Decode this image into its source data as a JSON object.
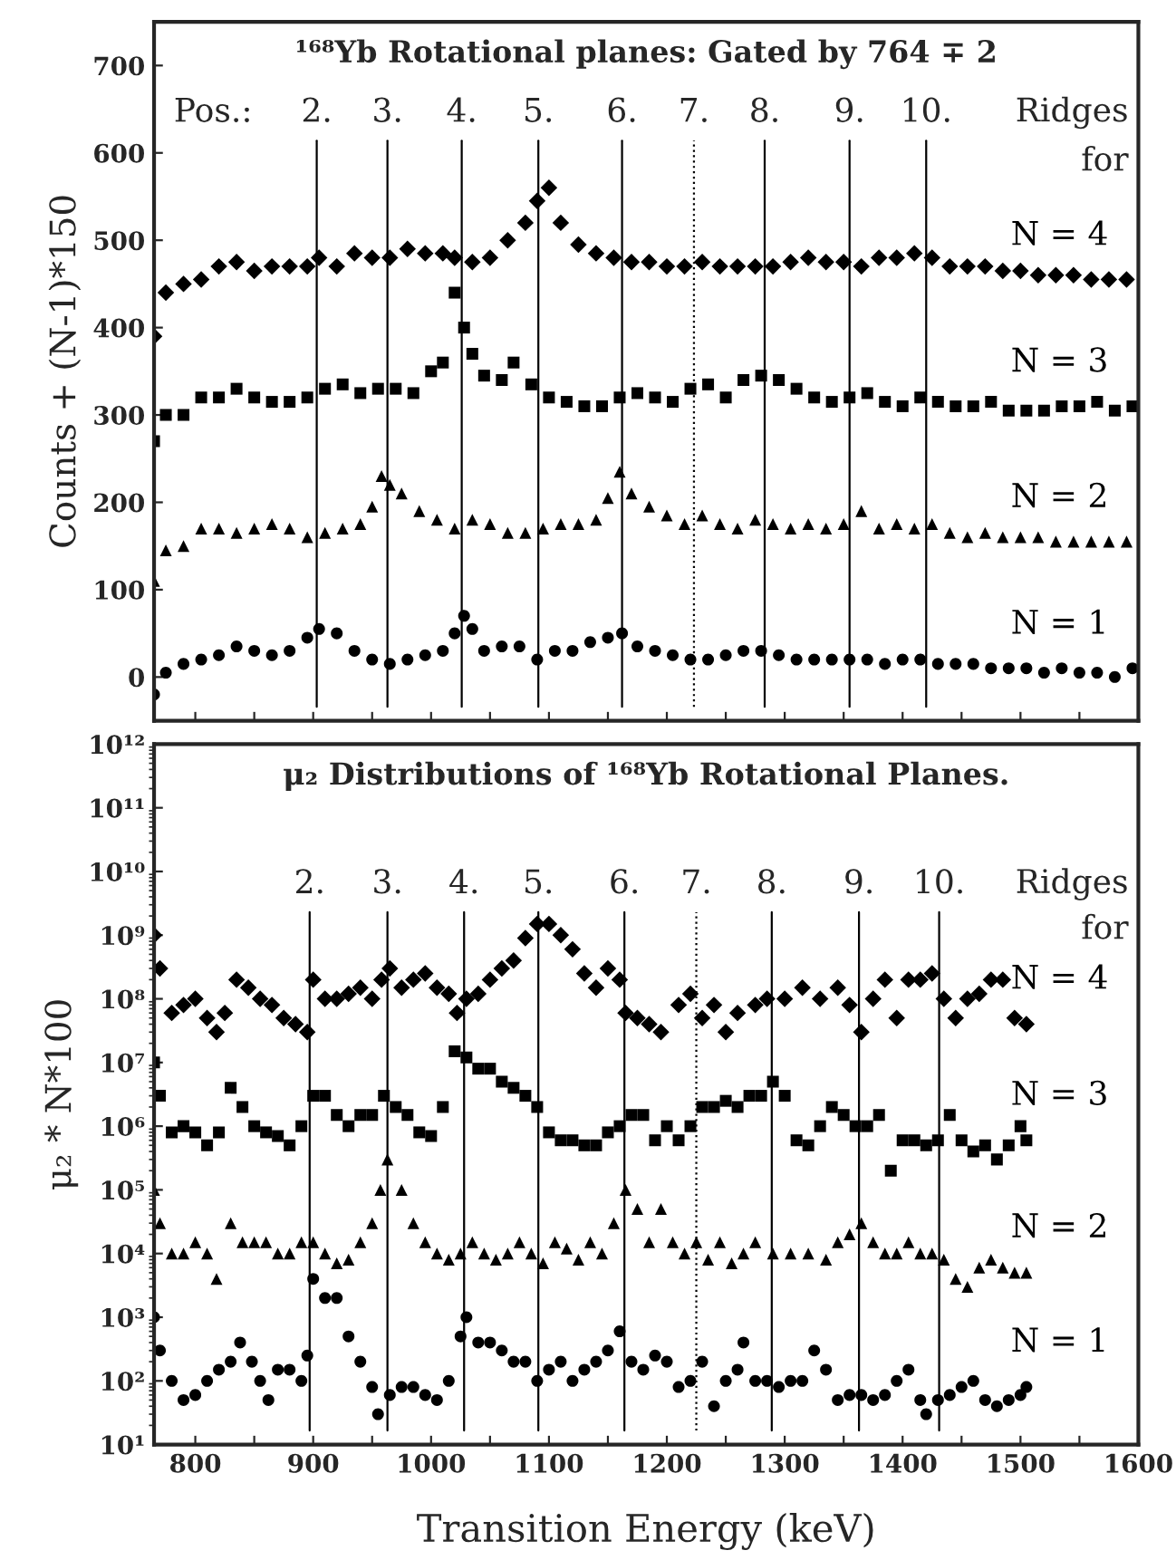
{
  "chart_data": [
    {
      "type": "scatter",
      "title": "¹⁶⁸Yb Rotational planes: Gated by 764 ∓ 2",
      "ylabel": "Counts + (N-1)*150",
      "xlim": [
        765,
        1600
      ],
      "xticks": [
        800,
        850,
        900,
        950,
        1000,
        1050,
        1100,
        1150,
        1200,
        1250,
        1300,
        1350,
        1400,
        1450,
        1500,
        1550,
        1600
      ],
      "ylim": [
        -50,
        750
      ],
      "yticks": [
        0,
        100,
        200,
        300,
        400,
        500,
        600,
        700
      ],
      "tick_labels": "y",
      "legend": false,
      "grid": false,
      "annotations": [
        "Pos.:",
        "Ridges",
        "for",
        "2.",
        "3.",
        "4.",
        "5.",
        "6.",
        "7.",
        "8.",
        "9.",
        "10."
      ],
      "ref_lines": [
        {
          "axis": "x",
          "value": 903
        },
        {
          "axis": "x",
          "value": 963
        },
        {
          "axis": "x",
          "value": 1026
        },
        {
          "axis": "x",
          "value": 1091
        },
        {
          "axis": "x",
          "value": 1162
        },
        {
          "axis": "x",
          "value": 1223,
          "line_style": "dotted"
        },
        {
          "axis": "x",
          "value": 1283
        },
        {
          "axis": "x",
          "value": 1355
        },
        {
          "axis": "x",
          "value": 1420
        }
      ],
      "series": [
        {
          "name": "N = 4",
          "color": "#000000",
          "marker": "diamond",
          "x": [
            765,
            775,
            790,
            805,
            820,
            835,
            850,
            865,
            880,
            895,
            905,
            920,
            935,
            950,
            965,
            980,
            995,
            1010,
            1020,
            1035,
            1050,
            1065,
            1080,
            1090,
            1100,
            1110,
            1125,
            1140,
            1155,
            1170,
            1185,
            1200,
            1215,
            1230,
            1245,
            1260,
            1275,
            1290,
            1305,
            1320,
            1335,
            1350,
            1365,
            1380,
            1395,
            1410,
            1425,
            1440,
            1455,
            1470,
            1485,
            1500,
            1515,
            1530,
            1545,
            1560,
            1575,
            1590
          ],
          "values": [
            390,
            440,
            450,
            455,
            470,
            475,
            465,
            470,
            470,
            470,
            480,
            470,
            485,
            480,
            480,
            490,
            485,
            485,
            480,
            475,
            480,
            500,
            520,
            545,
            560,
            520,
            495,
            485,
            480,
            475,
            475,
            470,
            470,
            475,
            470,
            470,
            470,
            470,
            475,
            480,
            475,
            475,
            470,
            480,
            480,
            485,
            480,
            470,
            470,
            470,
            465,
            465,
            460,
            460,
            460,
            455,
            455,
            455
          ]
        },
        {
          "name": "N = 3",
          "color": "#000000",
          "marker": "square",
          "x": [
            765,
            775,
            790,
            805,
            820,
            835,
            850,
            865,
            880,
            895,
            910,
            925,
            940,
            955,
            970,
            985,
            1000,
            1010,
            1020,
            1028,
            1035,
            1045,
            1060,
            1070,
            1085,
            1100,
            1115,
            1130,
            1145,
            1160,
            1175,
            1190,
            1205,
            1220,
            1235,
            1250,
            1265,
            1280,
            1295,
            1310,
            1325,
            1340,
            1355,
            1370,
            1385,
            1400,
            1415,
            1430,
            1445,
            1460,
            1475,
            1490,
            1505,
            1520,
            1535,
            1550,
            1565,
            1580,
            1595
          ],
          "values": [
            270,
            300,
            300,
            320,
            320,
            330,
            320,
            315,
            315,
            320,
            330,
            335,
            325,
            330,
            330,
            325,
            350,
            360,
            440,
            400,
            370,
            345,
            340,
            360,
            335,
            320,
            315,
            310,
            310,
            320,
            325,
            320,
            315,
            330,
            335,
            320,
            340,
            345,
            340,
            330,
            320,
            315,
            320,
            325,
            315,
            310,
            320,
            315,
            310,
            310,
            315,
            305,
            305,
            305,
            310,
            310,
            315,
            305,
            310
          ]
        },
        {
          "name": "N = 2",
          "color": "#000000",
          "marker": "triangle",
          "x": [
            765,
            775,
            790,
            805,
            820,
            835,
            850,
            865,
            880,
            895,
            910,
            925,
            940,
            950,
            958,
            965,
            975,
            990,
            1005,
            1020,
            1035,
            1050,
            1065,
            1080,
            1095,
            1110,
            1125,
            1140,
            1150,
            1160,
            1170,
            1185,
            1200,
            1215,
            1230,
            1245,
            1260,
            1275,
            1290,
            1305,
            1320,
            1335,
            1350,
            1365,
            1380,
            1395,
            1410,
            1425,
            1440,
            1455,
            1470,
            1485,
            1500,
            1515,
            1530,
            1545,
            1560,
            1575,
            1590
          ],
          "values": [
            110,
            145,
            150,
            170,
            170,
            165,
            170,
            175,
            170,
            160,
            165,
            170,
            175,
            195,
            230,
            220,
            210,
            190,
            180,
            170,
            180,
            175,
            165,
            165,
            170,
            175,
            175,
            180,
            205,
            235,
            210,
            195,
            185,
            175,
            185,
            175,
            170,
            180,
            175,
            170,
            175,
            170,
            175,
            190,
            170,
            175,
            170,
            175,
            165,
            160,
            165,
            160,
            160,
            160,
            155,
            155,
            155,
            155,
            155
          ]
        },
        {
          "name": "N = 1",
          "color": "#000000",
          "marker": "circle",
          "x": [
            765,
            775,
            790,
            805,
            820,
            835,
            850,
            865,
            880,
            895,
            905,
            920,
            935,
            950,
            965,
            980,
            995,
            1010,
            1020,
            1028,
            1035,
            1045,
            1060,
            1075,
            1090,
            1105,
            1120,
            1135,
            1150,
            1162,
            1175,
            1190,
            1205,
            1220,
            1235,
            1250,
            1265,
            1280,
            1295,
            1310,
            1325,
            1340,
            1355,
            1370,
            1385,
            1400,
            1415,
            1430,
            1445,
            1460,
            1475,
            1490,
            1505,
            1520,
            1535,
            1550,
            1565,
            1580,
            1595
          ],
          "values": [
            -20,
            5,
            15,
            20,
            25,
            35,
            30,
            25,
            30,
            45,
            55,
            50,
            30,
            20,
            15,
            20,
            25,
            30,
            50,
            70,
            55,
            30,
            35,
            35,
            20,
            30,
            30,
            40,
            45,
            50,
            35,
            30,
            25,
            20,
            20,
            25,
            30,
            30,
            25,
            20,
            20,
            20,
            20,
            20,
            15,
            20,
            20,
            15,
            15,
            15,
            10,
            10,
            10,
            5,
            10,
            5,
            5,
            0,
            10
          ]
        }
      ]
    },
    {
      "type": "scatter",
      "title": "μ₂ Distributions of ¹⁶⁸Yb Rotational Planes.",
      "xlabel": "Transition Energy (keV)",
      "ylabel": "μ₂ * N*100",
      "log": "y",
      "xlim": [
        765,
        1600
      ],
      "xticks": [
        800,
        {
          "value": 850,
          "label": null
        },
        900,
        {
          "value": 950,
          "label": null
        },
        1000,
        {
          "value": 1050,
          "label": null
        },
        1100,
        {
          "value": 1150,
          "label": null
        },
        1200,
        {
          "value": 1250,
          "label": null
        },
        1300,
        {
          "value": 1350,
          "label": null
        },
        1400,
        {
          "value": 1450,
          "label": null
        },
        1500,
        {
          "value": 1550,
          "label": null
        },
        1600
      ],
      "ylim": [
        10,
        1000000000000.0
      ],
      "yticks": [
        {
          "value": 10,
          "label": "10¹"
        },
        {
          "value": 100,
          "label": "10²"
        },
        {
          "value": 1000,
          "label": "10³"
        },
        {
          "value": 10000,
          "label": "10⁴"
        },
        {
          "value": 100000,
          "label": "10⁵"
        },
        {
          "value": 1000000,
          "label": "10⁶"
        },
        {
          "value": 10000000,
          "label": "10⁷"
        },
        {
          "value": 100000000,
          "label": "10⁸"
        },
        {
          "value": 1000000000,
          "label": "10⁹"
        },
        {
          "value": 10000000000,
          "label": "10¹⁰"
        },
        {
          "value": 100000000000,
          "label": "10¹¹"
        },
        {
          "value": 1000000000000,
          "label": "10¹²"
        }
      ],
      "legend": false,
      "grid": false,
      "annotations": [
        "Ridges",
        "for",
        "2.",
        "3.",
        "4.",
        "5.",
        "6.",
        "7.",
        "8.",
        "9.",
        "10."
      ],
      "ref_lines": [
        {
          "axis": "x",
          "value": 897
        },
        {
          "axis": "x",
          "value": 963
        },
        {
          "axis": "x",
          "value": 1028
        },
        {
          "axis": "x",
          "value": 1091
        },
        {
          "axis": "x",
          "value": 1164
        },
        {
          "axis": "x",
          "value": 1225,
          "line_style": "dotted"
        },
        {
          "axis": "x",
          "value": 1289
        },
        {
          "axis": "x",
          "value": 1363
        },
        {
          "axis": "x",
          "value": 1431
        }
      ],
      "series": [
        {
          "name": "N = 4",
          "color": "#000000",
          "marker": "diamond",
          "x": [
            765,
            770,
            780,
            790,
            800,
            810,
            818,
            825,
            835,
            845,
            855,
            865,
            875,
            885,
            895,
            900,
            910,
            920,
            930,
            940,
            950,
            958,
            965,
            975,
            985,
            995,
            1005,
            1015,
            1022,
            1030,
            1040,
            1050,
            1060,
            1070,
            1080,
            1090,
            1100,
            1110,
            1120,
            1130,
            1140,
            1150,
            1160,
            1165,
            1175,
            1185,
            1195,
            1210,
            1220,
            1230,
            1240,
            1250,
            1260,
            1275,
            1285,
            1300,
            1315,
            1330,
            1345,
            1355,
            1365,
            1375,
            1385,
            1395,
            1405,
            1415,
            1425,
            1435,
            1445,
            1455,
            1465,
            1475,
            1485,
            1495,
            1505
          ],
          "values": [
            1000000000.0,
            300000000.0,
            60000000.0,
            80000000.0,
            100000000.0,
            50000000.0,
            30000000.0,
            60000000.0,
            200000000.0,
            150000000.0,
            100000000.0,
            80000000.0,
            50000000.0,
            40000000.0,
            30000000.0,
            200000000.0,
            100000000.0,
            100000000.0,
            120000000.0,
            150000000.0,
            100000000.0,
            200000000.0,
            300000000.0,
            150000000.0,
            200000000.0,
            250000000.0,
            150000000.0,
            120000000.0,
            60000000.0,
            100000000.0,
            120000000.0,
            200000000.0,
            300000000.0,
            400000000.0,
            900000000.0,
            1500000000.0,
            1500000000.0,
            1000000000.0,
            600000000.0,
            250000000.0,
            150000000.0,
            300000000.0,
            200000000.0,
            60000000.0,
            50000000.0,
            40000000.0,
            30000000.0,
            80000000.0,
            120000000.0,
            50000000.0,
            80000000.0,
            30000000.0,
            60000000.0,
            80000000.0,
            100000000.0,
            100000000.0,
            150000000.0,
            100000000.0,
            150000000.0,
            80000000.0,
            30000000.0,
            100000000.0,
            200000000.0,
            50000000.0,
            200000000.0,
            200000000.0,
            250000000.0,
            100000000.0,
            50000000.0,
            100000000.0,
            120000000.0,
            200000000.0,
            200000000.0,
            50000000.0,
            40000000.0
          ]
        },
        {
          "name": "N = 3",
          "color": "#000000",
          "marker": "square",
          "x": [
            765,
            770,
            780,
            790,
            800,
            810,
            820,
            830,
            840,
            850,
            860,
            870,
            880,
            890,
            900,
            910,
            920,
            930,
            940,
            950,
            960,
            970,
            980,
            990,
            1000,
            1010,
            1020,
            1030,
            1040,
            1050,
            1060,
            1070,
            1080,
            1090,
            1100,
            1110,
            1120,
            1130,
            1140,
            1150,
            1160,
            1170,
            1180,
            1190,
            1200,
            1210,
            1220,
            1230,
            1240,
            1250,
            1260,
            1270,
            1280,
            1290,
            1300,
            1310,
            1320,
            1330,
            1340,
            1350,
            1360,
            1370,
            1380,
            1390,
            1400,
            1410,
            1420,
            1430,
            1440,
            1450,
            1460,
            1470,
            1480,
            1490,
            1500,
            1505
          ],
          "values": [
            10000000.0,
            3000000.0,
            800000.0,
            1000000.0,
            800000.0,
            500000.0,
            800000.0,
            4000000.0,
            2000000.0,
            1000000.0,
            800000.0,
            700000.0,
            500000.0,
            1000000.0,
            3000000.0,
            3000000.0,
            1500000.0,
            1000000.0,
            1500000.0,
            1500000.0,
            3000000.0,
            2000000.0,
            1500000.0,
            800000.0,
            700000.0,
            2000000.0,
            15000000.0,
            12000000.0,
            8000000.0,
            8000000.0,
            5000000.0,
            4000000.0,
            3000000.0,
            2000000.0,
            800000.0,
            600000.0,
            600000.0,
            500000.0,
            500000.0,
            800000.0,
            1000000.0,
            1500000.0,
            1500000.0,
            600000.0,
            1000000.0,
            600000.0,
            1000000.0,
            2000000.0,
            2000000.0,
            2500000.0,
            2000000.0,
            3000000.0,
            3000000.0,
            5000000.0,
            3000000.0,
            600000.0,
            500000.0,
            1000000.0,
            2000000.0,
            1500000.0,
            1000000.0,
            1000000.0,
            1500000.0,
            200000.0,
            600000.0,
            600000.0,
            500000.0,
            600000.0,
            1500000.0,
            600000.0,
            400000.0,
            500000.0,
            300000.0,
            500000.0,
            1000000.0,
            600000.0
          ]
        },
        {
          "name": "N = 2",
          "color": "#000000",
          "marker": "triangle",
          "x": [
            765,
            770,
            780,
            790,
            800,
            810,
            818,
            830,
            840,
            850,
            860,
            870,
            880,
            890,
            900,
            910,
            920,
            930,
            940,
            950,
            957,
            963,
            975,
            985,
            995,
            1005,
            1015,
            1025,
            1035,
            1045,
            1055,
            1065,
            1075,
            1085,
            1095,
            1105,
            1115,
            1125,
            1135,
            1145,
            1155,
            1165,
            1175,
            1185,
            1195,
            1205,
            1215,
            1225,
            1235,
            1245,
            1255,
            1265,
            1275,
            1290,
            1305,
            1320,
            1335,
            1345,
            1355,
            1365,
            1375,
            1385,
            1395,
            1405,
            1415,
            1425,
            1435,
            1445,
            1455,
            1465,
            1475,
            1485,
            1495,
            1505
          ],
          "values": [
            100000.0,
            30000.0,
            10000.0,
            10000.0,
            15000.0,
            10000.0,
            4000.0,
            30000.0,
            15000.0,
            15000.0,
            15000.0,
            10000.0,
            10000.0,
            15000.0,
            15000.0,
            10000.0,
            7000.0,
            8000.0,
            15000.0,
            30000.0,
            100000.0,
            300000.0,
            100000.0,
            30000.0,
            15000.0,
            10000.0,
            8000.0,
            10000.0,
            15000.0,
            10000.0,
            8000.0,
            10000.0,
            15000.0,
            10000.0,
            7000.0,
            15000.0,
            12000.0,
            8000.0,
            15000.0,
            10000.0,
            30000.0,
            100000.0,
            50000.0,
            15000.0,
            50000.0,
            15000.0,
            10000.0,
            15000.0,
            8000.0,
            15000.0,
            7000.0,
            10000.0,
            15000.0,
            10000.0,
            10000.0,
            10000.0,
            8000.0,
            15000.0,
            20000.0,
            30000.0,
            15000.0,
            10000.0,
            10000.0,
            15000.0,
            10000.0,
            10000.0,
            8000.0,
            4000.0,
            3000.0,
            6000.0,
            8000.0,
            6000.0,
            5000.0,
            5000.0
          ]
        },
        {
          "name": "N = 1",
          "color": "#000000",
          "marker": "circle",
          "x": [
            765,
            770,
            780,
            790,
            800,
            810,
            820,
            830,
            838,
            848,
            855,
            862,
            870,
            880,
            890,
            895,
            900,
            910,
            920,
            930,
            940,
            950,
            955,
            965,
            975,
            985,
            995,
            1005,
            1015,
            1025,
            1030,
            1040,
            1050,
            1060,
            1070,
            1080,
            1090,
            1100,
            1110,
            1120,
            1130,
            1140,
            1150,
            1160,
            1170,
            1180,
            1190,
            1200,
            1210,
            1220,
            1230,
            1240,
            1250,
            1260,
            1265,
            1275,
            1285,
            1295,
            1305,
            1315,
            1325,
            1335,
            1345,
            1355,
            1365,
            1375,
            1385,
            1395,
            1405,
            1415,
            1420,
            1430,
            1440,
            1450,
            1460,
            1470,
            1480,
            1490,
            1500,
            1505
          ],
          "values": [
            1000.0,
            300.0,
            100.0,
            50.0,
            60.0,
            100.0,
            150.0,
            200.0,
            400.0,
            200.0,
            100.0,
            50.0,
            150.0,
            150.0,
            100.0,
            250.0,
            4000.0,
            2000.0,
            2000.0,
            500.0,
            200.0,
            80.0,
            30.0,
            60.0,
            80.0,
            80.0,
            60.0,
            50.0,
            100.0,
            500.0,
            1000.0,
            400.0,
            400.0,
            300.0,
            200.0,
            200.0,
            100.0,
            150.0,
            200.0,
            100.0,
            150.0,
            200.0,
            300.0,
            600.0,
            200.0,
            150.0,
            250.0,
            200.0,
            80.0,
            100.0,
            200.0,
            40.0,
            100.0,
            150.0,
            400.0,
            100.0,
            100.0,
            80.0,
            100.0,
            100.0,
            300.0,
            150.0,
            50.0,
            60.0,
            60.0,
            50.0,
            60.0,
            100.0,
            150.0,
            50.0,
            30.0,
            50.0,
            60.0,
            80.0,
            100.0,
            50.0,
            40.0,
            50.0,
            60.0,
            80.0
          ]
        }
      ]
    }
  ]
}
